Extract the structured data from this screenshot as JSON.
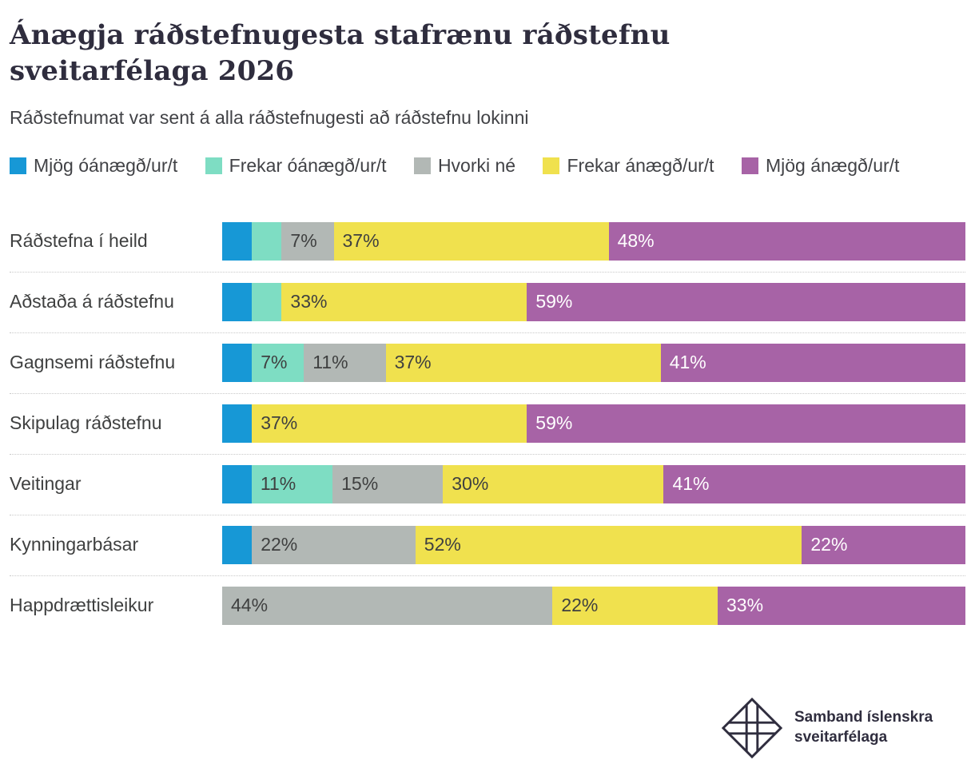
{
  "header": {
    "title": "Ánægja ráðstefnugesta stafrænu ráðstefnu sveitarfélaga 2026",
    "subtitle": "Ráðstefnumat var sent á alla ráðstefnugesti að ráðstefnu lokinni"
  },
  "chart_data": {
    "type": "bar",
    "variant": "horizontal-stacked-100",
    "unit": "%",
    "xlim": [
      0,
      100
    ],
    "grid": false,
    "legend_position": "top",
    "label_min_value": 7,
    "categories": [
      "Ráðstefna í heild",
      "Aðstaða á ráðstefnu",
      "Gagnsemi ráðstefnu",
      "Skipulag ráðstefnu",
      "Veitingar",
      "Kynningarbásar",
      "Happdrættisleikur"
    ],
    "series": [
      {
        "name": "Mjög óánægð/ur/t",
        "color": "#1798d6",
        "text_color": "#3f4040",
        "values": [
          4,
          4,
          4,
          4,
          4,
          4,
          0
        ]
      },
      {
        "name": "Frekar óánægð/ur/t",
        "color": "#7eddc3",
        "text_color": "#3f4040",
        "values": [
          4,
          4,
          7,
          0,
          11,
          0,
          0
        ]
      },
      {
        "name": "Hvorki né",
        "color": "#b2b8b5",
        "text_color": "#3f4040",
        "values": [
          7,
          0,
          11,
          0,
          15,
          22,
          44
        ]
      },
      {
        "name": "Frekar ánægð/ur/t",
        "color": "#f0e14e",
        "text_color": "#3f4040",
        "values": [
          37,
          33,
          37,
          37,
          30,
          52,
          22
        ]
      },
      {
        "name": "Mjög ánægð/ur/t",
        "color": "#a763a6",
        "text_color": "#ffffff",
        "values": [
          48,
          59,
          41,
          59,
          41,
          22,
          33
        ]
      }
    ]
  },
  "footer": {
    "org_name": "Samband íslenskra sveitarfélaga"
  },
  "colors": {
    "title_text": "#2f2d3e",
    "body_text": "#3f4040",
    "separator": "#c9c9c9",
    "background": "#ffffff"
  }
}
